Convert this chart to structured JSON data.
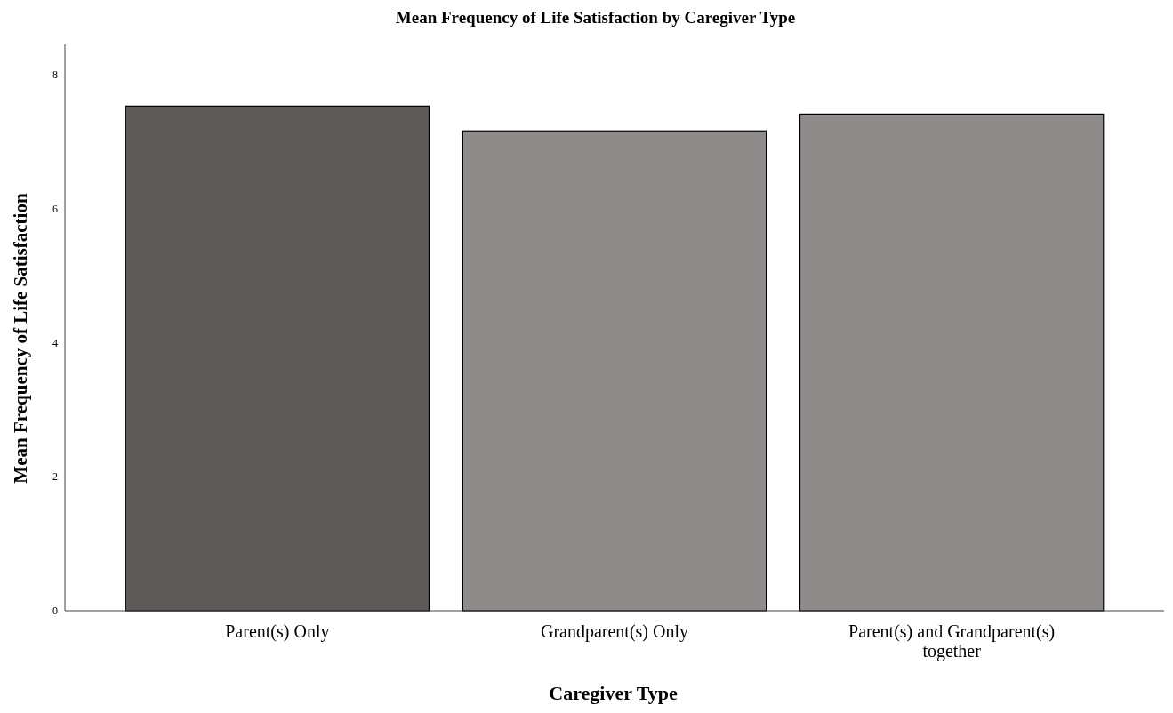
{
  "chart_data": {
    "type": "bar",
    "title": "Mean Frequency of Life Satisfaction by Caregiver Type",
    "xlabel": "Caregiver Type",
    "ylabel": "Mean Frequency of Life Satisfaction",
    "categories": [
      "Parent(s) Only",
      "Grandparent(s) Only",
      "Parent(s) and Grandparent(s) together"
    ],
    "values": [
      7.53,
      7.16,
      7.41
    ],
    "colors": [
      "#5e5a59",
      "#8f8b8a",
      "#8f8b8a"
    ],
    "ylim": [
      0,
      8.45
    ],
    "yticks": [
      0,
      2,
      4,
      6,
      8
    ],
    "grid": false
  }
}
